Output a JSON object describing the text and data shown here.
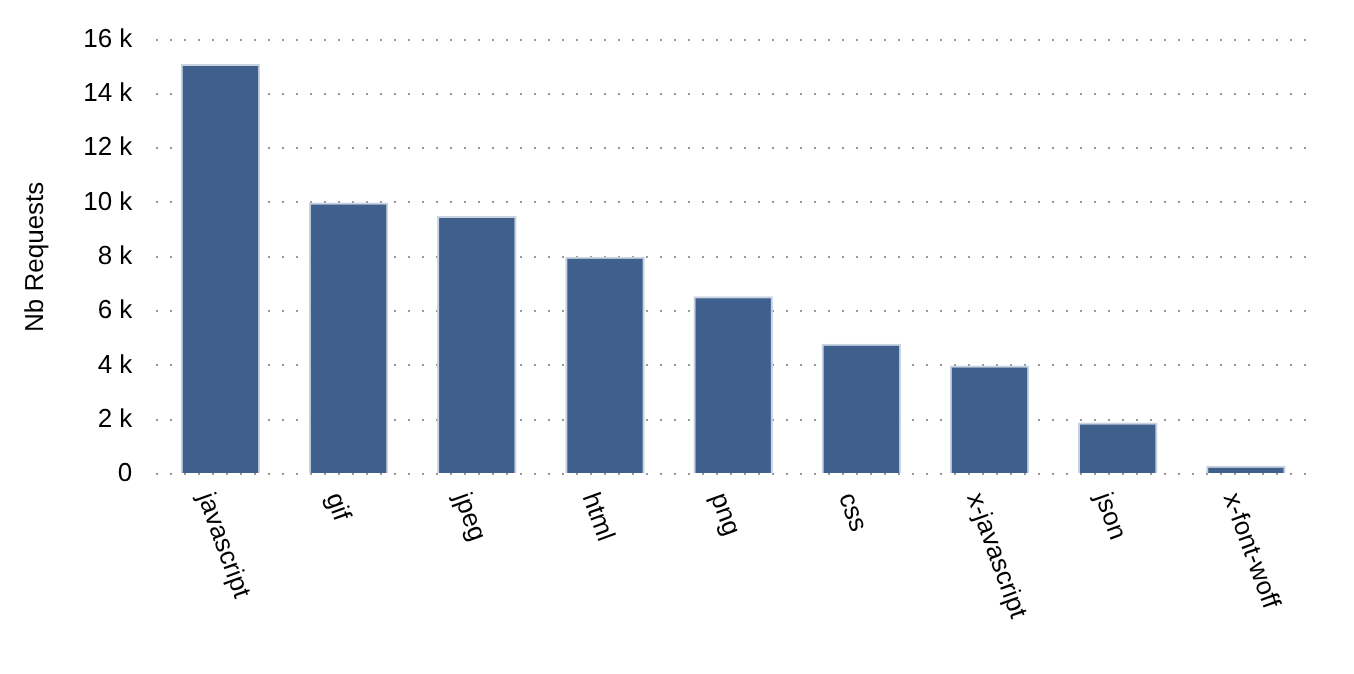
{
  "chart_data": {
    "type": "bar",
    "ylabel": "Nb Requests",
    "categories": [
      "javascript",
      "gif",
      "jpeg",
      "html",
      "png",
      "css",
      "x-javascript",
      "json",
      "x-font-woff"
    ],
    "values": [
      15100,
      10000,
      9500,
      8000,
      6550,
      4800,
      4000,
      1900,
      300
    ],
    "color": "#3f5f8c",
    "ylim": [
      0,
      16000
    ],
    "yticks": [
      {
        "value": 0,
        "label": "0"
      },
      {
        "value": 2000,
        "label": "2 k"
      },
      {
        "value": 4000,
        "label": "4 k"
      },
      {
        "value": 6000,
        "label": "6 k"
      },
      {
        "value": 8000,
        "label": "8 k"
      },
      {
        "value": 10000,
        "label": "10 k"
      },
      {
        "value": 12000,
        "label": "12 k"
      },
      {
        "value": 14000,
        "label": "14 k"
      },
      {
        "value": 16000,
        "label": "16 k"
      }
    ],
    "grid": "y",
    "legend": false
  }
}
